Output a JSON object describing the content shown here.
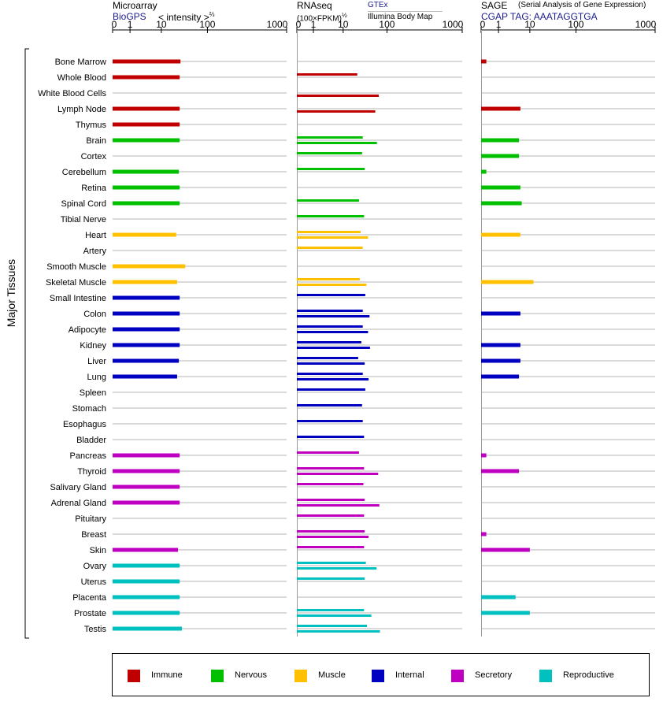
{
  "panels": {
    "microarray": {
      "title": "Microarray",
      "source": "BioGPS",
      "scale_label": "< intensity >",
      "scale_exp": "⅔"
    },
    "rnaseq": {
      "title": "RNAseq",
      "scale_label": "(100×FPKM)",
      "scale_exp": "½",
      "source_1": "GTEx",
      "source_2": "Illumina Body Map"
    },
    "sage": {
      "title": "SAGE",
      "subtitle": "(Serial Analysis of Gene Expression)",
      "tag_line": "CGAP TAG: AAATAGGTGA"
    }
  },
  "side_label": "Major Tissues",
  "colors": {
    "Immune": "#c00000",
    "Nervous": "#00c000",
    "Muscle": "#ffc000",
    "Internal": "#0000c0",
    "Secretory": "#c000c0",
    "Reproductive": "#00c0c0"
  },
  "chart_data": {
    "type": "bar",
    "axis_ticks": [
      "0",
      "1",
      "10",
      "100",
      "1000"
    ],
    "axis_values": [
      0,
      1,
      10,
      100,
      1000
    ],
    "xlim": [
      0,
      1000
    ],
    "grid": true,
    "legend_position": "bottom",
    "legend": [
      "Immune",
      "Nervous",
      "Muscle",
      "Internal",
      "Secretory",
      "Reproductive"
    ],
    "tissues": [
      {
        "name": "Bone Marrow",
        "group": "Immune",
        "microarray": 26,
        "gtex": null,
        "ibm": null,
        "sage": 0.3
      },
      {
        "name": "Whole Blood",
        "group": "Immune",
        "microarray": 25,
        "gtex": 21,
        "ibm": null,
        "sage": null
      },
      {
        "name": "White Blood Cells",
        "group": "Immune",
        "microarray": null,
        "gtex": null,
        "ibm": 65,
        "sage": null
      },
      {
        "name": "Lymph Node",
        "group": "Immune",
        "microarray": 25,
        "gtex": null,
        "ibm": 54,
        "sage": 5
      },
      {
        "name": "Thymus",
        "group": "Immune",
        "microarray": 25,
        "gtex": null,
        "ibm": null,
        "sage": null
      },
      {
        "name": "Brain",
        "group": "Nervous",
        "microarray": 25,
        "gtex": 28,
        "ibm": 59,
        "sage": 4.5
      },
      {
        "name": "Cortex",
        "group": "Nervous",
        "microarray": null,
        "gtex": 27,
        "ibm": null,
        "sage": 4.5
      },
      {
        "name": "Cerebellum",
        "group": "Nervous",
        "microarray": 24,
        "gtex": 31,
        "ibm": null,
        "sage": 0.3
      },
      {
        "name": "Retina",
        "group": "Nervous",
        "microarray": 25,
        "gtex": null,
        "ibm": null,
        "sage": 5
      },
      {
        "name": "Spinal Cord",
        "group": "Nervous",
        "microarray": 25,
        "gtex": 23,
        "ibm": null,
        "sage": 5.5
      },
      {
        "name": "Tibial Nerve",
        "group": "Nervous",
        "microarray": null,
        "gtex": 30,
        "ibm": null,
        "sage": null
      },
      {
        "name": "Heart",
        "group": "Muscle",
        "microarray": 21,
        "gtex": 25,
        "ibm": 37,
        "sage": 5
      },
      {
        "name": "Artery",
        "group": "Muscle",
        "microarray": null,
        "gtex": 28,
        "ibm": null,
        "sage": null
      },
      {
        "name": "Smooth Muscle",
        "group": "Muscle",
        "microarray": 33,
        "gtex": null,
        "ibm": null,
        "sage": null
      },
      {
        "name": "Skeletal Muscle",
        "group": "Muscle",
        "microarray": 22,
        "gtex": 24,
        "ibm": 34,
        "sage": 12
      },
      {
        "name": "Small Intestine",
        "group": "Internal",
        "microarray": 25,
        "gtex": 32,
        "ibm": null,
        "sage": null
      },
      {
        "name": "Colon",
        "group": "Internal",
        "microarray": 25,
        "gtex": 28,
        "ibm": 40,
        "sage": 5
      },
      {
        "name": "Adipocyte",
        "group": "Internal",
        "microarray": 25,
        "gtex": 28,
        "ibm": 37,
        "sage": null
      },
      {
        "name": "Kidney",
        "group": "Internal",
        "microarray": 25,
        "gtex": 26,
        "ibm": 41,
        "sage": 5
      },
      {
        "name": "Liver",
        "group": "Internal",
        "microarray": 24,
        "gtex": 22,
        "ibm": 31,
        "sage": 5
      },
      {
        "name": "Lung",
        "group": "Internal",
        "microarray": 22,
        "gtex": 28,
        "ibm": 38,
        "sage": 4.5
      },
      {
        "name": "Spleen",
        "group": "Internal",
        "microarray": null,
        "gtex": 32,
        "ibm": null,
        "sage": null
      },
      {
        "name": "Stomach",
        "group": "Internal",
        "microarray": null,
        "gtex": 27,
        "ibm": null,
        "sage": null
      },
      {
        "name": "Esophagus",
        "group": "Internal",
        "microarray": null,
        "gtex": 28,
        "ibm": null,
        "sage": null
      },
      {
        "name": "Bladder",
        "group": "Internal",
        "microarray": null,
        "gtex": 30,
        "ibm": null,
        "sage": null
      },
      {
        "name": "Pancreas",
        "group": "Secretory",
        "microarray": 25,
        "gtex": 23,
        "ibm": null,
        "sage": 0.3
      },
      {
        "name": "Thyroid",
        "group": "Secretory",
        "microarray": 25,
        "gtex": 30,
        "ibm": 63,
        "sage": 4.5
      },
      {
        "name": "Salivary Gland",
        "group": "Secretory",
        "microarray": 25,
        "gtex": 29,
        "ibm": null,
        "sage": null
      },
      {
        "name": "Adrenal Gland",
        "group": "Secretory",
        "microarray": 25,
        "gtex": 31,
        "ibm": 67,
        "sage": null
      },
      {
        "name": "Pituitary",
        "group": "Secretory",
        "microarray": null,
        "gtex": 30,
        "ibm": null,
        "sage": null
      },
      {
        "name": "Breast",
        "group": "Secretory",
        "microarray": null,
        "gtex": 31,
        "ibm": 38,
        "sage": 0.3
      },
      {
        "name": "Skin",
        "group": "Secretory",
        "microarray": 23,
        "gtex": 30,
        "ibm": null,
        "sage": 10
      },
      {
        "name": "Ovary",
        "group": "Reproductive",
        "microarray": 25,
        "gtex": 33,
        "ibm": 58,
        "sage": null
      },
      {
        "name": "Uterus",
        "group": "Reproductive",
        "microarray": 25,
        "gtex": 31,
        "ibm": null,
        "sage": null
      },
      {
        "name": "Placenta",
        "group": "Reproductive",
        "microarray": 25,
        "gtex": null,
        "ibm": null,
        "sage": 3.5
      },
      {
        "name": "Prostate",
        "group": "Reproductive",
        "microarray": 25,
        "gtex": 30,
        "ibm": 44,
        "sage": 10
      },
      {
        "name": "Testis",
        "group": "Reproductive",
        "microarray": 28,
        "gtex": 35,
        "ibm": 69,
        "sage": null
      }
    ]
  }
}
